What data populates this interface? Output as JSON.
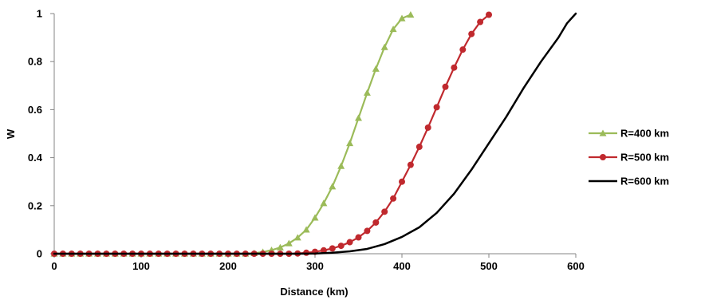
{
  "chart_data": {
    "type": "line",
    "title": "",
    "xlabel": "Distance (km)",
    "ylabel": "W",
    "xlim": [
      0,
      600
    ],
    "ylim": [
      0,
      1
    ],
    "xticks": [
      "0",
      "100",
      "200",
      "300",
      "400",
      "500",
      "600"
    ],
    "yticks": [
      "0",
      "0.2",
      "0.4",
      "0.6",
      "0.8",
      "1"
    ],
    "grid": false,
    "legend_position": "right",
    "series": [
      {
        "name": "R=400 km",
        "color": "#9bbb59",
        "marker": "triangle",
        "x": [
          0,
          10,
          20,
          30,
          40,
          50,
          60,
          70,
          80,
          90,
          100,
          110,
          120,
          130,
          140,
          150,
          160,
          170,
          180,
          190,
          200,
          210,
          220,
          230,
          240,
          250,
          260,
          270,
          280,
          290,
          300,
          310,
          320,
          330,
          340,
          350,
          360,
          370,
          380,
          390,
          400,
          410
        ],
        "y": [
          0,
          0,
          0,
          0,
          0,
          0,
          0,
          0,
          0,
          0,
          0,
          0,
          0,
          0,
          0,
          0,
          0,
          0,
          0,
          0,
          0,
          0,
          0,
          0.002,
          0.007,
          0.015,
          0.026,
          0.043,
          0.067,
          0.1,
          0.15,
          0.21,
          0.28,
          0.365,
          0.46,
          0.565,
          0.67,
          0.77,
          0.86,
          0.935,
          0.98,
          0.995
        ]
      },
      {
        "name": "R=500 km",
        "color": "#c0292e",
        "marker": "circle",
        "x": [
          0,
          10,
          20,
          30,
          40,
          50,
          60,
          70,
          80,
          90,
          100,
          110,
          120,
          130,
          140,
          150,
          160,
          170,
          180,
          190,
          200,
          210,
          220,
          230,
          240,
          250,
          260,
          270,
          280,
          290,
          300,
          310,
          320,
          330,
          340,
          350,
          360,
          370,
          380,
          390,
          400,
          410,
          420,
          430,
          440,
          450,
          460,
          470,
          480,
          490,
          500
        ],
        "y": [
          0,
          0,
          0,
          0,
          0,
          0,
          0,
          0,
          0,
          0,
          0,
          0,
          0,
          0,
          0,
          0,
          0,
          0,
          0,
          0,
          0,
          0,
          0,
          0,
          0,
          0,
          0,
          0,
          0.001,
          0.004,
          0.008,
          0.014,
          0.022,
          0.033,
          0.048,
          0.068,
          0.095,
          0.13,
          0.175,
          0.23,
          0.3,
          0.37,
          0.445,
          0.525,
          0.61,
          0.695,
          0.775,
          0.85,
          0.915,
          0.965,
          0.995
        ]
      },
      {
        "name": "R=600 km",
        "color": "#000000",
        "marker": "none",
        "x": [
          0,
          50,
          100,
          150,
          200,
          250,
          280,
          300,
          320,
          340,
          360,
          380,
          400,
          420,
          440,
          460,
          480,
          500,
          520,
          540,
          560,
          580,
          590,
          600
        ],
        "y": [
          0,
          0,
          0,
          0,
          0,
          0,
          0,
          0.001,
          0.004,
          0.01,
          0.02,
          0.04,
          0.07,
          0.11,
          0.17,
          0.25,
          0.35,
          0.46,
          0.57,
          0.69,
          0.8,
          0.9,
          0.96,
          1.0
        ]
      }
    ]
  }
}
